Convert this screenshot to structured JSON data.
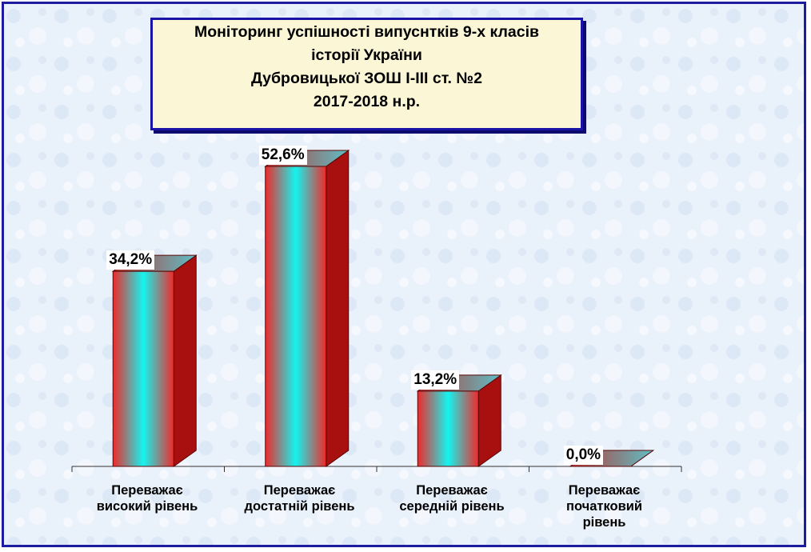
{
  "chart_data": {
    "type": "bar",
    "title": [
      "Моніторинг успішності випуснтків 9-х класів",
      "історії України",
      "Дубровицької ЗОШ І-ІІІ ст. №2",
      "2017-2018  н.р."
    ],
    "categories": [
      [
        "Переважає",
        "високий рівень"
      ],
      [
        "Переважає",
        "достатній рівень"
      ],
      [
        "Переважає",
        "середній рівень"
      ],
      [
        "Переважає",
        "початковий",
        "рівень"
      ]
    ],
    "values": [
      34.2,
      52.6,
      13.2,
      0.0
    ],
    "value_labels": [
      "34,2%",
      "52,6%",
      "13,2%",
      "0,0%"
    ],
    "unit": "%",
    "ylim": [
      0,
      60
    ],
    "grid": false,
    "legend": "none",
    "colors": {
      "bar_edge": "#ef2a2a",
      "bar_center": "#14f4f0",
      "bar_side": "#a80f0f",
      "bar_top": "#5ec0c8",
      "background": "#e9f1fb",
      "frame": "#1d1ba0",
      "title_bg": "#fbf6d6"
    }
  }
}
